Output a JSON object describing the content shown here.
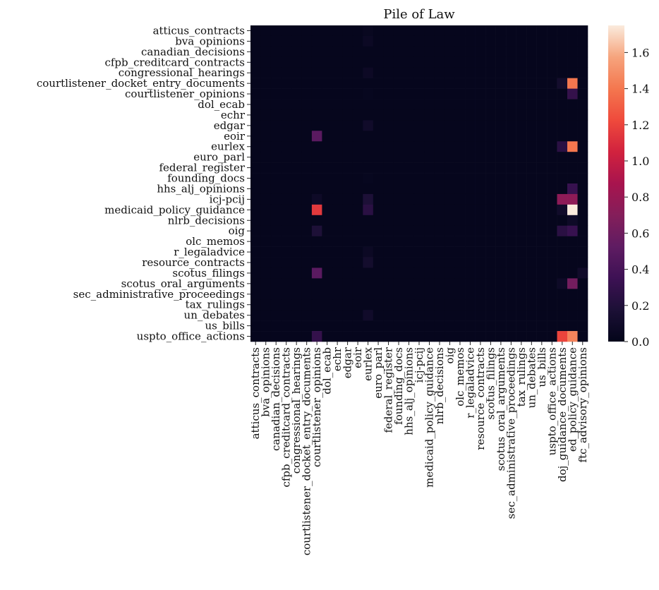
{
  "chart_data": {
    "type": "heatmap",
    "title": "Pile of Law",
    "xlabel": "",
    "ylabel": "",
    "rows": [
      "atticus_contracts",
      "bva_opinions",
      "canadian_decisions",
      "cfpb_creditcard_contracts",
      "congressional_hearings",
      "courtlistener_docket_entry_documents",
      "courtlistener_opinions",
      "dol_ecab",
      "echr",
      "edgar",
      "eoir",
      "eurlex",
      "euro_parl",
      "federal_register",
      "founding_docs",
      "hhs_alj_opinions",
      "icj-pcij",
      "medicaid_policy_guidance",
      "nlrb_decisions",
      "oig",
      "olc_memos",
      "r_legaladvice",
      "resource_contracts",
      "scotus_filings",
      "scotus_oral_arguments",
      "sec_administrative_proceedings",
      "tax_rulings",
      "un_debates",
      "us_bills",
      "uspto_office_actions"
    ],
    "columns": [
      "atticus_contracts",
      "bva_opinions",
      "canadian_decisions",
      "cfpb_creditcard_contracts",
      "congressional_hearings",
      "courtlistener_docket_entry_documents",
      "courtlistener_opinions",
      "dol_ecab",
      "echr",
      "edgar",
      "eoir",
      "eurlex",
      "euro_parl",
      "federal_register",
      "founding_docs",
      "hhs_alj_opinions",
      "icj-pcij",
      "medicaid_policy_guidance",
      "nlrb_decisions",
      "oig",
      "olc_memos",
      "r_legaladvice",
      "resource_contracts",
      "scotus_filings",
      "scotus_oral_arguments",
      "sec_administrative_proceedings",
      "tax_rulings",
      "un_debates",
      "us_bills",
      "uspto_office_actions",
      "doj_guidance_documents",
      "ed_policy_guidance",
      "ftc_advisory_opinions"
    ],
    "values": [
      [
        0.02,
        0.02,
        0.02,
        0.02,
        0.02,
        0.02,
        0.02,
        0.02,
        0.02,
        0.02,
        0.02,
        0.04,
        0.02,
        0.02,
        0.02,
        0.02,
        0.02,
        0.02,
        0.02,
        0.02,
        0.02,
        0.02,
        0.02,
        0.02,
        0.02,
        0.02,
        0.02,
        0.02,
        0.02,
        0.02,
        0.02,
        0.02,
        0.02
      ],
      [
        0.02,
        0.02,
        0.02,
        0.02,
        0.02,
        0.02,
        0.02,
        0.02,
        0.02,
        0.02,
        0.02,
        0.06,
        0.02,
        0.02,
        0.02,
        0.02,
        0.02,
        0.02,
        0.02,
        0.02,
        0.02,
        0.02,
        0.02,
        0.02,
        0.02,
        0.02,
        0.02,
        0.02,
        0.02,
        0.02,
        0.02,
        0.02,
        0.02
      ],
      [
        0.02,
        0.02,
        0.02,
        0.02,
        0.02,
        0.02,
        0.02,
        0.02,
        0.02,
        0.02,
        0.02,
        0.02,
        0.02,
        0.02,
        0.02,
        0.02,
        0.02,
        0.02,
        0.02,
        0.02,
        0.02,
        0.02,
        0.02,
        0.02,
        0.02,
        0.02,
        0.02,
        0.02,
        0.02,
        0.02,
        0.02,
        0.02,
        0.02
      ],
      [
        0.02,
        0.02,
        0.02,
        0.02,
        0.02,
        0.02,
        0.02,
        0.02,
        0.02,
        0.02,
        0.02,
        0.02,
        0.02,
        0.02,
        0.02,
        0.02,
        0.02,
        0.02,
        0.02,
        0.02,
        0.02,
        0.02,
        0.02,
        0.02,
        0.02,
        0.02,
        0.02,
        0.02,
        0.02,
        0.02,
        0.02,
        0.02,
        0.02
      ],
      [
        0.02,
        0.02,
        0.02,
        0.02,
        0.02,
        0.02,
        0.02,
        0.02,
        0.02,
        0.02,
        0.02,
        0.07,
        0.02,
        0.02,
        0.02,
        0.02,
        0.02,
        0.02,
        0.02,
        0.02,
        0.02,
        0.02,
        0.02,
        0.02,
        0.02,
        0.02,
        0.02,
        0.02,
        0.02,
        0.02,
        0.02,
        0.02,
        0.02
      ],
      [
        0.02,
        0.02,
        0.02,
        0.02,
        0.02,
        0.02,
        0.02,
        0.02,
        0.02,
        0.02,
        0.02,
        0.02,
        0.02,
        0.02,
        0.02,
        0.02,
        0.02,
        0.02,
        0.02,
        0.02,
        0.02,
        0.02,
        0.02,
        0.02,
        0.02,
        0.02,
        0.02,
        0.02,
        0.02,
        0.02,
        0.12,
        1.4,
        0.02
      ],
      [
        0.02,
        0.02,
        0.02,
        0.02,
        0.02,
        0.02,
        0.02,
        0.02,
        0.02,
        0.02,
        0.02,
        0.03,
        0.02,
        0.02,
        0.02,
        0.02,
        0.02,
        0.02,
        0.02,
        0.02,
        0.02,
        0.02,
        0.02,
        0.02,
        0.02,
        0.02,
        0.02,
        0.02,
        0.02,
        0.02,
        0.02,
        0.3,
        0.02
      ],
      [
        0.02,
        0.02,
        0.02,
        0.02,
        0.02,
        0.02,
        0.02,
        0.02,
        0.02,
        0.02,
        0.02,
        0.02,
        0.02,
        0.02,
        0.02,
        0.02,
        0.02,
        0.02,
        0.02,
        0.02,
        0.02,
        0.02,
        0.02,
        0.02,
        0.02,
        0.02,
        0.02,
        0.02,
        0.02,
        0.02,
        0.02,
        0.02,
        0.02
      ],
      [
        0.02,
        0.02,
        0.02,
        0.02,
        0.02,
        0.02,
        0.02,
        0.02,
        0.02,
        0.02,
        0.02,
        0.02,
        0.02,
        0.02,
        0.02,
        0.02,
        0.02,
        0.02,
        0.02,
        0.02,
        0.02,
        0.02,
        0.02,
        0.02,
        0.02,
        0.02,
        0.02,
        0.02,
        0.02,
        0.02,
        0.02,
        0.02,
        0.02
      ],
      [
        0.02,
        0.02,
        0.02,
        0.02,
        0.02,
        0.02,
        0.02,
        0.02,
        0.02,
        0.02,
        0.02,
        0.1,
        0.02,
        0.02,
        0.02,
        0.02,
        0.02,
        0.02,
        0.02,
        0.02,
        0.02,
        0.02,
        0.02,
        0.02,
        0.02,
        0.02,
        0.02,
        0.02,
        0.02,
        0.02,
        0.02,
        0.02,
        0.02
      ],
      [
        0.02,
        0.02,
        0.02,
        0.02,
        0.02,
        0.02,
        0.5,
        0.02,
        0.02,
        0.02,
        0.02,
        0.02,
        0.02,
        0.02,
        0.02,
        0.02,
        0.02,
        0.02,
        0.02,
        0.02,
        0.02,
        0.02,
        0.02,
        0.02,
        0.02,
        0.02,
        0.02,
        0.02,
        0.02,
        0.02,
        0.02,
        0.02,
        0.02
      ],
      [
        0.02,
        0.02,
        0.02,
        0.02,
        0.02,
        0.02,
        0.02,
        0.02,
        0.02,
        0.02,
        0.02,
        0.02,
        0.02,
        0.02,
        0.02,
        0.02,
        0.02,
        0.02,
        0.02,
        0.02,
        0.02,
        0.02,
        0.02,
        0.02,
        0.02,
        0.02,
        0.02,
        0.02,
        0.02,
        0.02,
        0.25,
        1.4,
        0.02
      ],
      [
        0.02,
        0.02,
        0.02,
        0.02,
        0.02,
        0.02,
        0.02,
        0.02,
        0.02,
        0.02,
        0.02,
        0.02,
        0.02,
        0.02,
        0.02,
        0.02,
        0.02,
        0.02,
        0.02,
        0.02,
        0.02,
        0.02,
        0.02,
        0.02,
        0.02,
        0.02,
        0.02,
        0.02,
        0.02,
        0.02,
        0.02,
        0.02,
        0.02
      ],
      [
        0.02,
        0.02,
        0.02,
        0.02,
        0.02,
        0.02,
        0.02,
        0.02,
        0.02,
        0.02,
        0.02,
        0.02,
        0.02,
        0.02,
        0.02,
        0.02,
        0.02,
        0.02,
        0.02,
        0.02,
        0.02,
        0.02,
        0.02,
        0.02,
        0.02,
        0.02,
        0.02,
        0.02,
        0.02,
        0.02,
        0.02,
        0.02,
        0.02
      ],
      [
        0.02,
        0.02,
        0.02,
        0.02,
        0.02,
        0.02,
        0.02,
        0.02,
        0.02,
        0.02,
        0.02,
        0.03,
        0.02,
        0.02,
        0.02,
        0.02,
        0.02,
        0.02,
        0.02,
        0.02,
        0.02,
        0.02,
        0.02,
        0.02,
        0.02,
        0.02,
        0.02,
        0.02,
        0.02,
        0.02,
        0.02,
        0.02,
        0.02
      ],
      [
        0.02,
        0.02,
        0.02,
        0.02,
        0.02,
        0.02,
        0.02,
        0.02,
        0.02,
        0.02,
        0.02,
        0.02,
        0.02,
        0.02,
        0.02,
        0.02,
        0.02,
        0.02,
        0.02,
        0.02,
        0.02,
        0.02,
        0.02,
        0.02,
        0.02,
        0.02,
        0.02,
        0.02,
        0.02,
        0.02,
        0.02,
        0.32,
        0.02
      ],
      [
        0.02,
        0.02,
        0.02,
        0.02,
        0.02,
        0.02,
        0.08,
        0.02,
        0.02,
        0.02,
        0.02,
        0.18,
        0.02,
        0.02,
        0.02,
        0.02,
        0.02,
        0.02,
        0.02,
        0.02,
        0.02,
        0.02,
        0.02,
        0.02,
        0.02,
        0.02,
        0.02,
        0.02,
        0.02,
        0.02,
        0.75,
        0.75,
        0.02
      ],
      [
        0.02,
        0.02,
        0.02,
        0.02,
        0.02,
        0.02,
        1.15,
        0.02,
        0.02,
        0.02,
        0.02,
        0.25,
        0.02,
        0.02,
        0.02,
        0.02,
        0.02,
        0.02,
        0.02,
        0.02,
        0.02,
        0.02,
        0.02,
        0.02,
        0.02,
        0.02,
        0.02,
        0.02,
        0.02,
        0.02,
        0.1,
        1.75,
        0.02
      ],
      [
        0.02,
        0.02,
        0.02,
        0.02,
        0.02,
        0.02,
        0.02,
        0.02,
        0.02,
        0.02,
        0.02,
        0.02,
        0.02,
        0.02,
        0.02,
        0.02,
        0.02,
        0.02,
        0.02,
        0.02,
        0.02,
        0.02,
        0.02,
        0.02,
        0.02,
        0.02,
        0.02,
        0.02,
        0.02,
        0.02,
        0.02,
        0.08,
        0.02
      ],
      [
        0.02,
        0.02,
        0.02,
        0.02,
        0.02,
        0.02,
        0.18,
        0.02,
        0.02,
        0.02,
        0.02,
        0.02,
        0.02,
        0.02,
        0.02,
        0.02,
        0.02,
        0.02,
        0.02,
        0.02,
        0.02,
        0.02,
        0.02,
        0.02,
        0.02,
        0.02,
        0.02,
        0.02,
        0.02,
        0.02,
        0.25,
        0.32,
        0.02
      ],
      [
        0.02,
        0.02,
        0.02,
        0.02,
        0.02,
        0.02,
        0.02,
        0.02,
        0.02,
        0.02,
        0.02,
        0.02,
        0.02,
        0.02,
        0.02,
        0.02,
        0.02,
        0.02,
        0.02,
        0.02,
        0.02,
        0.02,
        0.02,
        0.02,
        0.02,
        0.02,
        0.02,
        0.02,
        0.02,
        0.02,
        0.02,
        0.02,
        0.02
      ],
      [
        0.02,
        0.02,
        0.02,
        0.02,
        0.02,
        0.02,
        0.02,
        0.02,
        0.02,
        0.02,
        0.02,
        0.06,
        0.02,
        0.02,
        0.02,
        0.02,
        0.02,
        0.02,
        0.02,
        0.02,
        0.02,
        0.02,
        0.02,
        0.02,
        0.02,
        0.02,
        0.02,
        0.02,
        0.02,
        0.02,
        0.02,
        0.02,
        0.02
      ],
      [
        0.02,
        0.02,
        0.02,
        0.02,
        0.02,
        0.02,
        0.02,
        0.02,
        0.02,
        0.02,
        0.02,
        0.12,
        0.02,
        0.02,
        0.02,
        0.02,
        0.02,
        0.02,
        0.02,
        0.02,
        0.02,
        0.02,
        0.02,
        0.02,
        0.02,
        0.02,
        0.02,
        0.02,
        0.02,
        0.02,
        0.02,
        0.02,
        0.02
      ],
      [
        0.02,
        0.02,
        0.02,
        0.02,
        0.02,
        0.02,
        0.5,
        0.02,
        0.02,
        0.02,
        0.02,
        0.02,
        0.02,
        0.02,
        0.02,
        0.02,
        0.02,
        0.02,
        0.02,
        0.02,
        0.02,
        0.02,
        0.02,
        0.02,
        0.02,
        0.02,
        0.02,
        0.02,
        0.02,
        0.02,
        0.02,
        0.02,
        0.1
      ],
      [
        0.02,
        0.02,
        0.02,
        0.02,
        0.02,
        0.02,
        0.02,
        0.02,
        0.02,
        0.02,
        0.02,
        0.02,
        0.02,
        0.02,
        0.02,
        0.02,
        0.02,
        0.02,
        0.02,
        0.02,
        0.02,
        0.02,
        0.02,
        0.02,
        0.02,
        0.02,
        0.02,
        0.02,
        0.02,
        0.02,
        0.08,
        0.62,
        0.02
      ],
      [
        0.02,
        0.02,
        0.02,
        0.02,
        0.02,
        0.02,
        0.02,
        0.02,
        0.02,
        0.02,
        0.02,
        0.02,
        0.02,
        0.02,
        0.02,
        0.02,
        0.02,
        0.02,
        0.02,
        0.02,
        0.02,
        0.02,
        0.02,
        0.02,
        0.02,
        0.02,
        0.02,
        0.02,
        0.02,
        0.02,
        0.02,
        0.02,
        0.02
      ],
      [
        0.02,
        0.02,
        0.02,
        0.02,
        0.02,
        0.02,
        0.02,
        0.02,
        0.02,
        0.02,
        0.02,
        0.02,
        0.02,
        0.02,
        0.02,
        0.02,
        0.02,
        0.02,
        0.02,
        0.02,
        0.02,
        0.02,
        0.02,
        0.02,
        0.02,
        0.02,
        0.02,
        0.02,
        0.02,
        0.02,
        0.02,
        0.02,
        0.02
      ],
      [
        0.02,
        0.02,
        0.02,
        0.02,
        0.02,
        0.02,
        0.02,
        0.02,
        0.02,
        0.02,
        0.02,
        0.1,
        0.02,
        0.02,
        0.02,
        0.02,
        0.02,
        0.02,
        0.02,
        0.02,
        0.02,
        0.02,
        0.02,
        0.02,
        0.02,
        0.02,
        0.02,
        0.02,
        0.02,
        0.02,
        0.02,
        0.02,
        0.02
      ],
      [
        0.02,
        0.02,
        0.02,
        0.02,
        0.02,
        0.02,
        0.02,
        0.02,
        0.02,
        0.02,
        0.02,
        0.02,
        0.02,
        0.02,
        0.02,
        0.02,
        0.02,
        0.02,
        0.02,
        0.02,
        0.02,
        0.02,
        0.02,
        0.02,
        0.02,
        0.02,
        0.02,
        0.02,
        0.02,
        0.02,
        0.02,
        0.02,
        0.02
      ],
      [
        0.02,
        0.02,
        0.02,
        0.02,
        0.02,
        0.02,
        0.3,
        0.02,
        0.02,
        0.02,
        0.02,
        0.02,
        0.02,
        0.02,
        0.02,
        0.02,
        0.02,
        0.02,
        0.02,
        0.02,
        0.02,
        0.02,
        0.02,
        0.02,
        0.02,
        0.02,
        0.02,
        0.02,
        0.02,
        0.02,
        1.2,
        1.45,
        0.02
      ]
    ],
    "colorbar": {
      "colormap": "rocket",
      "vmin": 0.0,
      "vmax": 1.75,
      "ticks": [
        0.0,
        0.2,
        0.4,
        0.6,
        0.8,
        1.0,
        1.2,
        1.4,
        1.6
      ],
      "tick_labels": [
        "0.0",
        "0.2",
        "0.4",
        "0.6",
        "0.8",
        "1.0",
        "1.2",
        "1.4",
        "1.6"
      ]
    }
  }
}
